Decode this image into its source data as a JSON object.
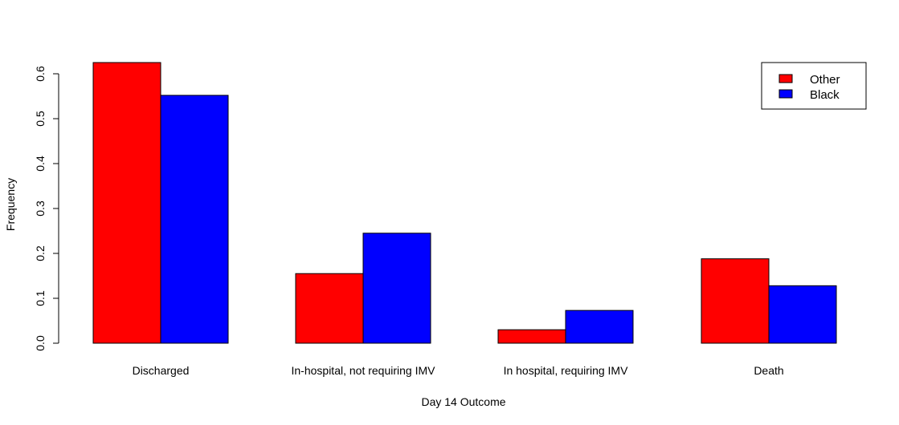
{
  "chart_data": {
    "type": "bar",
    "title": "",
    "xlabel": "Day 14 Outcome",
    "ylabel": "Frequency",
    "ylim": [
      0,
      0.6
    ],
    "yticks": [
      0.0,
      0.1,
      0.2,
      0.3,
      0.4,
      0.5,
      0.6
    ],
    "ytick_labels": [
      "0.0",
      "0.1",
      "0.2",
      "0.3",
      "0.4",
      "0.5",
      "0.6"
    ],
    "categories": [
      "Discharged",
      "In-hospital, not requiring IMV",
      "In hospital, requiring IMV",
      "Death"
    ],
    "series": [
      {
        "name": "Other",
        "color": "#ff0000",
        "values": [
          0.625,
          0.155,
          0.03,
          0.188
        ]
      },
      {
        "name": "Black",
        "color": "#0000ff",
        "values": [
          0.552,
          0.245,
          0.073,
          0.128
        ]
      }
    ],
    "legend_position": "top-right",
    "grid": false
  }
}
